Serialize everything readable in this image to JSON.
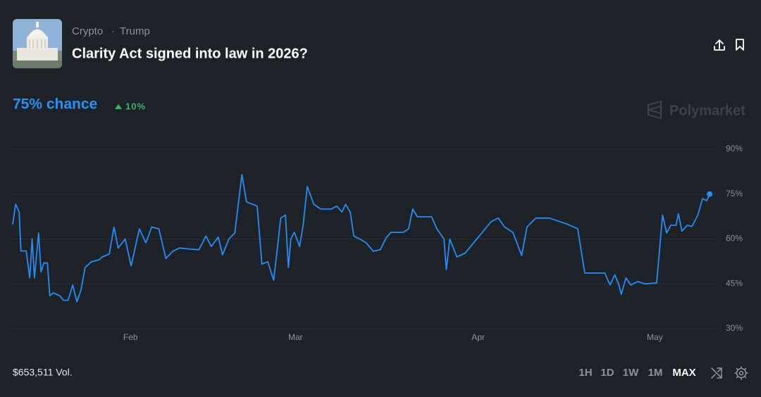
{
  "header": {
    "category": "Crypto",
    "tag": "Trump",
    "title": "Clarity Act signed into law in 2026?"
  },
  "odds": {
    "chance": "75% chance",
    "change": "10%"
  },
  "brand": "Polymarket",
  "chart_data": {
    "type": "line",
    "color": "#2a8cf0",
    "grid": true,
    "x": [
      0,
      0.5,
      1.1,
      1.4,
      2.3,
      2.9,
      3.3,
      3.7,
      4.4,
      4.8,
      5.3,
      5.9,
      6.3,
      6.9,
      8.0,
      8.6,
      9.4,
      10.2,
      10.9,
      11.6,
      12.3,
      13.4,
      14.6,
      15.2,
      16.4,
      17.2,
      17.9,
      19.1,
      20.1,
      21.5,
      22.6,
      23.6,
      24.8,
      26.0,
      27.2,
      28.3,
      30.1,
      31.6,
      32.8,
      33.7,
      34.9,
      35.6,
      36.7,
      37.7,
      38.9,
      39.7,
      41.5,
      42.3,
      43.3,
      44.3,
      44.9,
      45.5,
      46.3,
      46.8,
      47.2,
      47.8,
      48.7,
      49.3,
      50.0,
      51.1,
      52.3,
      54.1,
      55.0,
      55.9,
      56.5,
      57.3,
      57.9,
      58.9,
      60.0,
      61.2,
      62.4,
      63.4,
      64.2,
      65.4,
      66.3,
      67.2,
      67.9,
      68.7,
      71.1,
      72.0,
      73.2,
      73.6,
      74.2,
      75.4,
      76.8,
      79.2,
      81.2,
      82.4,
      83.5,
      84.9,
      86.4,
      87.3,
      88.8,
      91.1,
      94.1,
      95.9,
      97.1,
      100.5,
      101.4,
      102.2,
      102.9,
      103.3,
      104.1,
      104.9,
      106.1,
      107.3,
      109.3,
      110.3,
      111.0,
      111.7,
      112.6,
      113.0,
      113.6,
      114.5,
      115.3,
      116.3,
      117.1,
      117.8,
      118.3
    ],
    "values": [
      65,
      71.6,
      69,
      56,
      56,
      47,
      60,
      47,
      62,
      49,
      52,
      52,
      41,
      42,
      41,
      39.5,
      39.5,
      44.6,
      39,
      43,
      50.5,
      52.4,
      53,
      54,
      55,
      64,
      57,
      60,
      51,
      63.4,
      58.7,
      64,
      63.4,
      53.5,
      55.9,
      57,
      56.6,
      56.4,
      61,
      57.5,
      60.6,
      54.7,
      60,
      62,
      81.5,
      72.4,
      71,
      51.6,
      52.4,
      46.2,
      56.4,
      67,
      68,
      50.5,
      60,
      62.2,
      57.5,
      64.6,
      77.5,
      71.6,
      70,
      70,
      71,
      69,
      71.6,
      69,
      61,
      60,
      58.7,
      55.9,
      56.4,
      60.4,
      62.2,
      62.2,
      62.2,
      63.4,
      70,
      67.4,
      67.4,
      63.4,
      60,
      49.8,
      60,
      54,
      55.3,
      61,
      65.8,
      67,
      64,
      62.2,
      54.5,
      64,
      67,
      67,
      65,
      63.4,
      48.6,
      48.6,
      44.6,
      48,
      44.6,
      41.5,
      47,
      44.6,
      45.8,
      45,
      45.3,
      68,
      62,
      64.6,
      64.6,
      68.4,
      62.6,
      64.6,
      64.2,
      68,
      73.5,
      72.8,
      75
    ],
    "xlim": [
      0,
      119
    ],
    "xticks": [
      {
        "value": 20,
        "label": "Feb"
      },
      {
        "value": 48,
        "label": "Mar"
      },
      {
        "value": 79,
        "label": "Apr"
      },
      {
        "value": 109,
        "label": "May"
      }
    ],
    "ylim": [
      30,
      90
    ],
    "yticks": [
      {
        "value": 90,
        "label": "90%"
      },
      {
        "value": 75,
        "label": "75%"
      },
      {
        "value": 60,
        "label": "60%"
      },
      {
        "value": 45,
        "label": "45%"
      },
      {
        "value": 30,
        "label": "30%"
      }
    ]
  },
  "volume": "$653,511 Vol.",
  "ranges": [
    "1H",
    "1D",
    "1W",
    "1M",
    "MAX"
  ],
  "active_range": "MAX"
}
